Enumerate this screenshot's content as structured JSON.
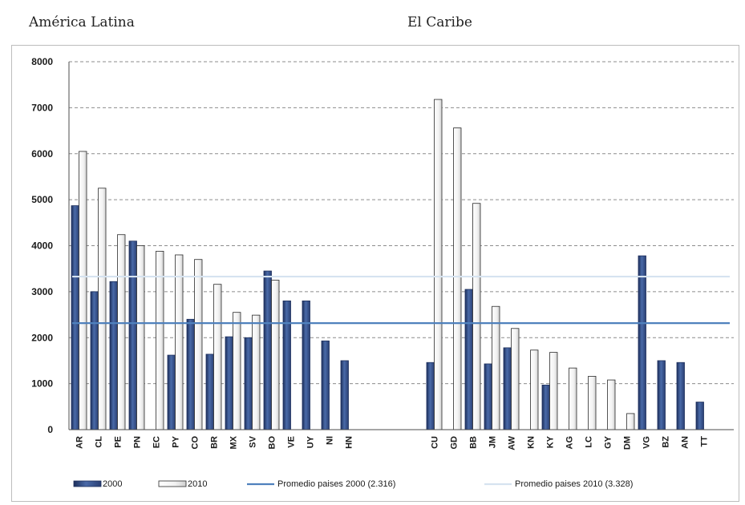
{
  "panel_titles": [
    "América Latina",
    "El Caribe"
  ],
  "chart_data": {
    "type": "bar",
    "ylim": [
      0,
      8000
    ],
    "yticks": [
      0,
      1000,
      2000,
      3000,
      4000,
      5000,
      6000,
      7000,
      8000
    ],
    "grid": true,
    "legend_position": "bottom",
    "groups": [
      {
        "name": "América Latina",
        "categories": [
          "AR",
          "CL",
          "PE",
          "PN",
          "EC",
          "PY",
          "CO",
          "BR",
          "MX",
          "SV",
          "BO",
          "VE",
          "UY",
          "NI",
          "HN"
        ],
        "series": [
          {
            "name": "2000",
            "values": [
              4870,
              3000,
              3220,
              4100,
              null,
              1620,
              2400,
              1640,
              2020,
              2000,
              3450,
              2800,
              2800,
              1930,
              1500
            ]
          },
          {
            "name": "2010",
            "values": [
              6050,
              5250,
              4240,
              4000,
              3880,
              3800,
              3700,
              3160,
              2550,
              2490,
              3250,
              null,
              null,
              null,
              null
            ]
          }
        ]
      },
      {
        "name": "El Caribe",
        "categories": [
          "CU",
          "GD",
          "BB",
          "JM",
          "AW",
          "KN",
          "KY",
          "AG",
          "LC",
          "GY",
          "DM",
          "VG",
          "BZ",
          "AN",
          "TT"
        ],
        "series": [
          {
            "name": "2000",
            "values": [
              1460,
              null,
              3050,
              1430,
              1780,
              null,
              970,
              null,
              null,
              null,
              null,
              3780,
              1500,
              1460,
              600
            ]
          },
          {
            "name": "2010",
            "values": [
              7180,
              6560,
              4920,
              2680,
              2200,
              1730,
              1680,
              1340,
              1160,
              1080,
              350,
              null,
              null,
              null,
              null
            ]
          }
        ]
      }
    ],
    "reference_lines": [
      {
        "name": "Promedio paises 2000 (2.316)",
        "value": 2316,
        "color": "#4f81bd"
      },
      {
        "name": "Promedio paises 2010 (3.328)",
        "value": 3328,
        "color": "#d6e3f0"
      }
    ],
    "legend": [
      "2000",
      "2010",
      "Promedio paises 2000 (2.316)",
      "Promedio paises 2010 (3.328)"
    ],
    "colors": {
      "s2000": "#3b5998",
      "s2000_dark": "#1d2f5c",
      "s2010": "#f2f2f2",
      "bar_edge": "#2b2b2b",
      "grid": "#8c8c8c",
      "avg2000": "#4f81bd",
      "avg2010": "#d6e3f0"
    }
  }
}
